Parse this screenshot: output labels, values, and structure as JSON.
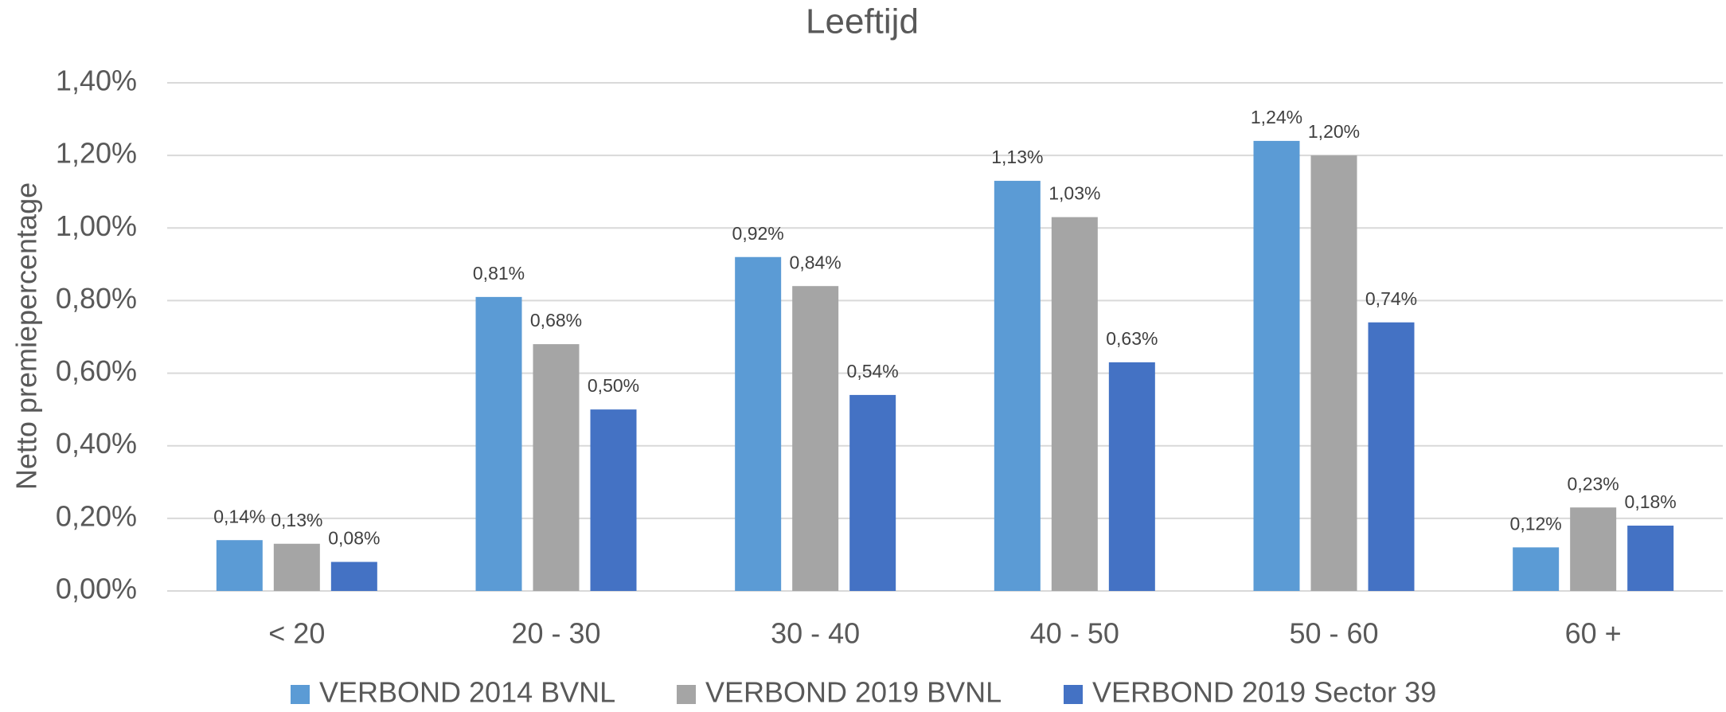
{
  "chart_data": {
    "type": "bar",
    "title": "Leeftijd",
    "y_label": "Netto premiepercentage",
    "categories": [
      "< 20",
      "20 - 30",
      "30 - 40",
      "40 - 50",
      "50 - 60",
      "60 +"
    ],
    "series": [
      {
        "name": "VERBOND 2014 BVNL",
        "color": "#5b9bd5",
        "values": [
          0.14,
          0.81,
          0.92,
          1.13,
          1.24,
          0.12
        ],
        "value_labels": [
          "0,14%",
          "0,81%",
          "0,92%",
          "1,13%",
          "1,24%",
          "0,12%"
        ]
      },
      {
        "name": "VERBOND 2019 BVNL",
        "color": "#a5a5a5",
        "values": [
          0.13,
          0.68,
          0.84,
          1.03,
          1.2,
          0.23
        ],
        "value_labels": [
          "0,13%",
          "0,68%",
          "0,84%",
          "1,03%",
          "1,20%",
          "0,23%"
        ]
      },
      {
        "name": "VERBOND 2019 Sector 39",
        "color": "#4472c4",
        "values": [
          0.08,
          0.5,
          0.54,
          0.63,
          0.74,
          0.18
        ],
        "value_labels": [
          "0,08%",
          "0,50%",
          "0,54%",
          "0,63%",
          "0,74%",
          "0,18%"
        ]
      }
    ],
    "ylim": [
      0,
      1.4
    ],
    "yticks": [
      {
        "value": 0,
        "label": "0,00%"
      },
      {
        "value": 0.2,
        "label": "0,20%"
      },
      {
        "value": 0.4,
        "label": "0,40%"
      },
      {
        "value": 0.6,
        "label": "0,60%"
      },
      {
        "value": 0.8,
        "label": "0,80%"
      },
      {
        "value": 1.0,
        "label": "1,00%"
      },
      {
        "value": 1.2,
        "label": "1,20%"
      },
      {
        "value": 1.4,
        "label": "1,40%"
      }
    ],
    "grid": true,
    "legend": "bottom"
  }
}
